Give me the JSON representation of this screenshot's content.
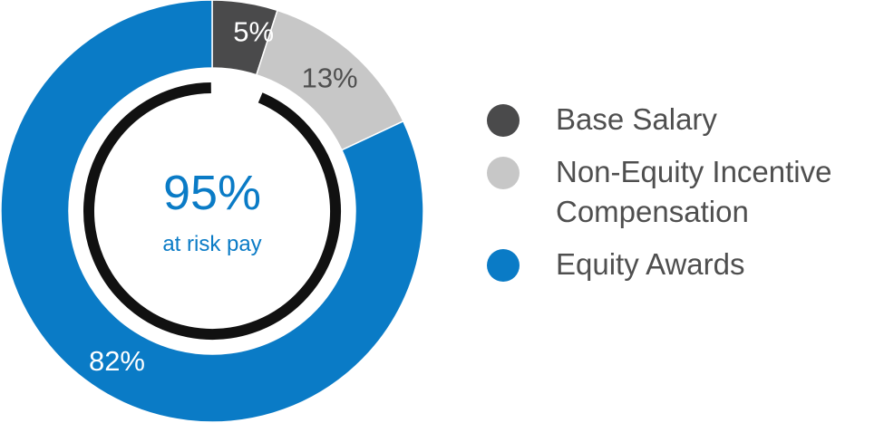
{
  "chart_data": {
    "type": "pie",
    "title": "",
    "center": {
      "value": "95%",
      "caption": "at risk pay"
    },
    "categories": [
      "Base Salary",
      "Non-Equity Incentive\nCompensation",
      "Equity Awards"
    ],
    "values": [
      5,
      13,
      82
    ],
    "value_labels": [
      "5%",
      "13%",
      "82%"
    ],
    "legend_position": "right"
  },
  "colors": {
    "base_salary": "#4a4a4b",
    "non_equity": "#c7c7c7",
    "equity": "#0a7bc6",
    "ring": "#111111",
    "center_text": "#0a7bc6",
    "dark_label": "#ffffff",
    "light_label": "#4f4f4f"
  }
}
